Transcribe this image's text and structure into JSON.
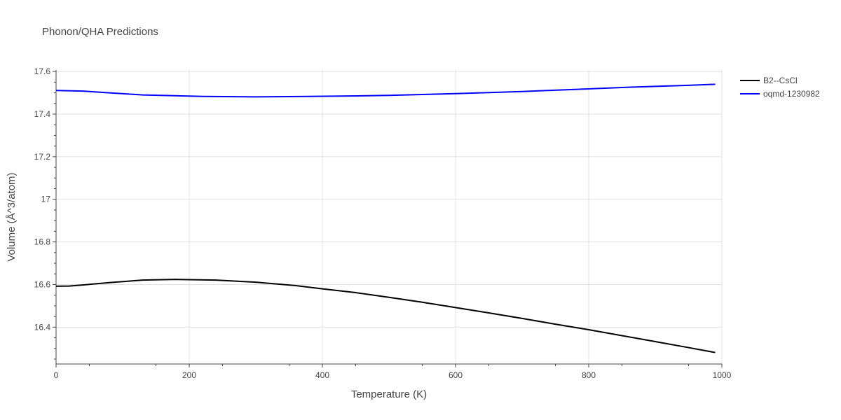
{
  "chart_data": {
    "type": "line",
    "title": "Phonon/QHA Predictions",
    "xlabel": "Temperature (K)",
    "ylabel": "Volume (Å^3/atom)",
    "xlim": [
      0,
      1000
    ],
    "ylim": [
      16.227,
      17.607
    ],
    "x_ticks": [
      0,
      200,
      400,
      600,
      800,
      1000
    ],
    "x_tick_labels": [
      "0",
      "200",
      "400",
      "600",
      "800",
      "1000"
    ],
    "y_ticks": [
      16.4,
      16.6,
      16.8,
      17.0,
      17.2,
      17.4,
      17.6
    ],
    "y_tick_labels": [
      "16.4",
      "16.6",
      "16.8",
      "17",
      "17.2",
      "17.4",
      "17.6"
    ],
    "grid": true,
    "legend_position": "top-right",
    "series": [
      {
        "name": "B2--CsCl",
        "color": "#000000",
        "x": [
          0,
          20,
          40,
          80,
          130,
          180,
          240,
          300,
          360,
          400,
          450,
          500,
          550,
          600,
          650,
          700,
          750,
          800,
          850,
          900,
          950,
          990
        ],
        "y": [
          16.592,
          16.593,
          16.598,
          16.609,
          16.621,
          16.624,
          16.621,
          16.611,
          16.595,
          16.58,
          16.562,
          16.54,
          16.517,
          16.492,
          16.467,
          16.441,
          16.414,
          16.388,
          16.36,
          16.332,
          16.304,
          16.281
        ]
      },
      {
        "name": "oqmd-1230982",
        "color": "#0000ff",
        "x": [
          0,
          40,
          130,
          220,
          300,
          380,
          440,
          500,
          600,
          700,
          780,
          850,
          950,
          990
        ],
        "y": [
          17.511,
          17.508,
          17.49,
          17.483,
          17.481,
          17.483,
          17.485,
          17.488,
          17.496,
          17.506,
          17.516,
          17.525,
          17.535,
          17.54
        ]
      }
    ]
  }
}
